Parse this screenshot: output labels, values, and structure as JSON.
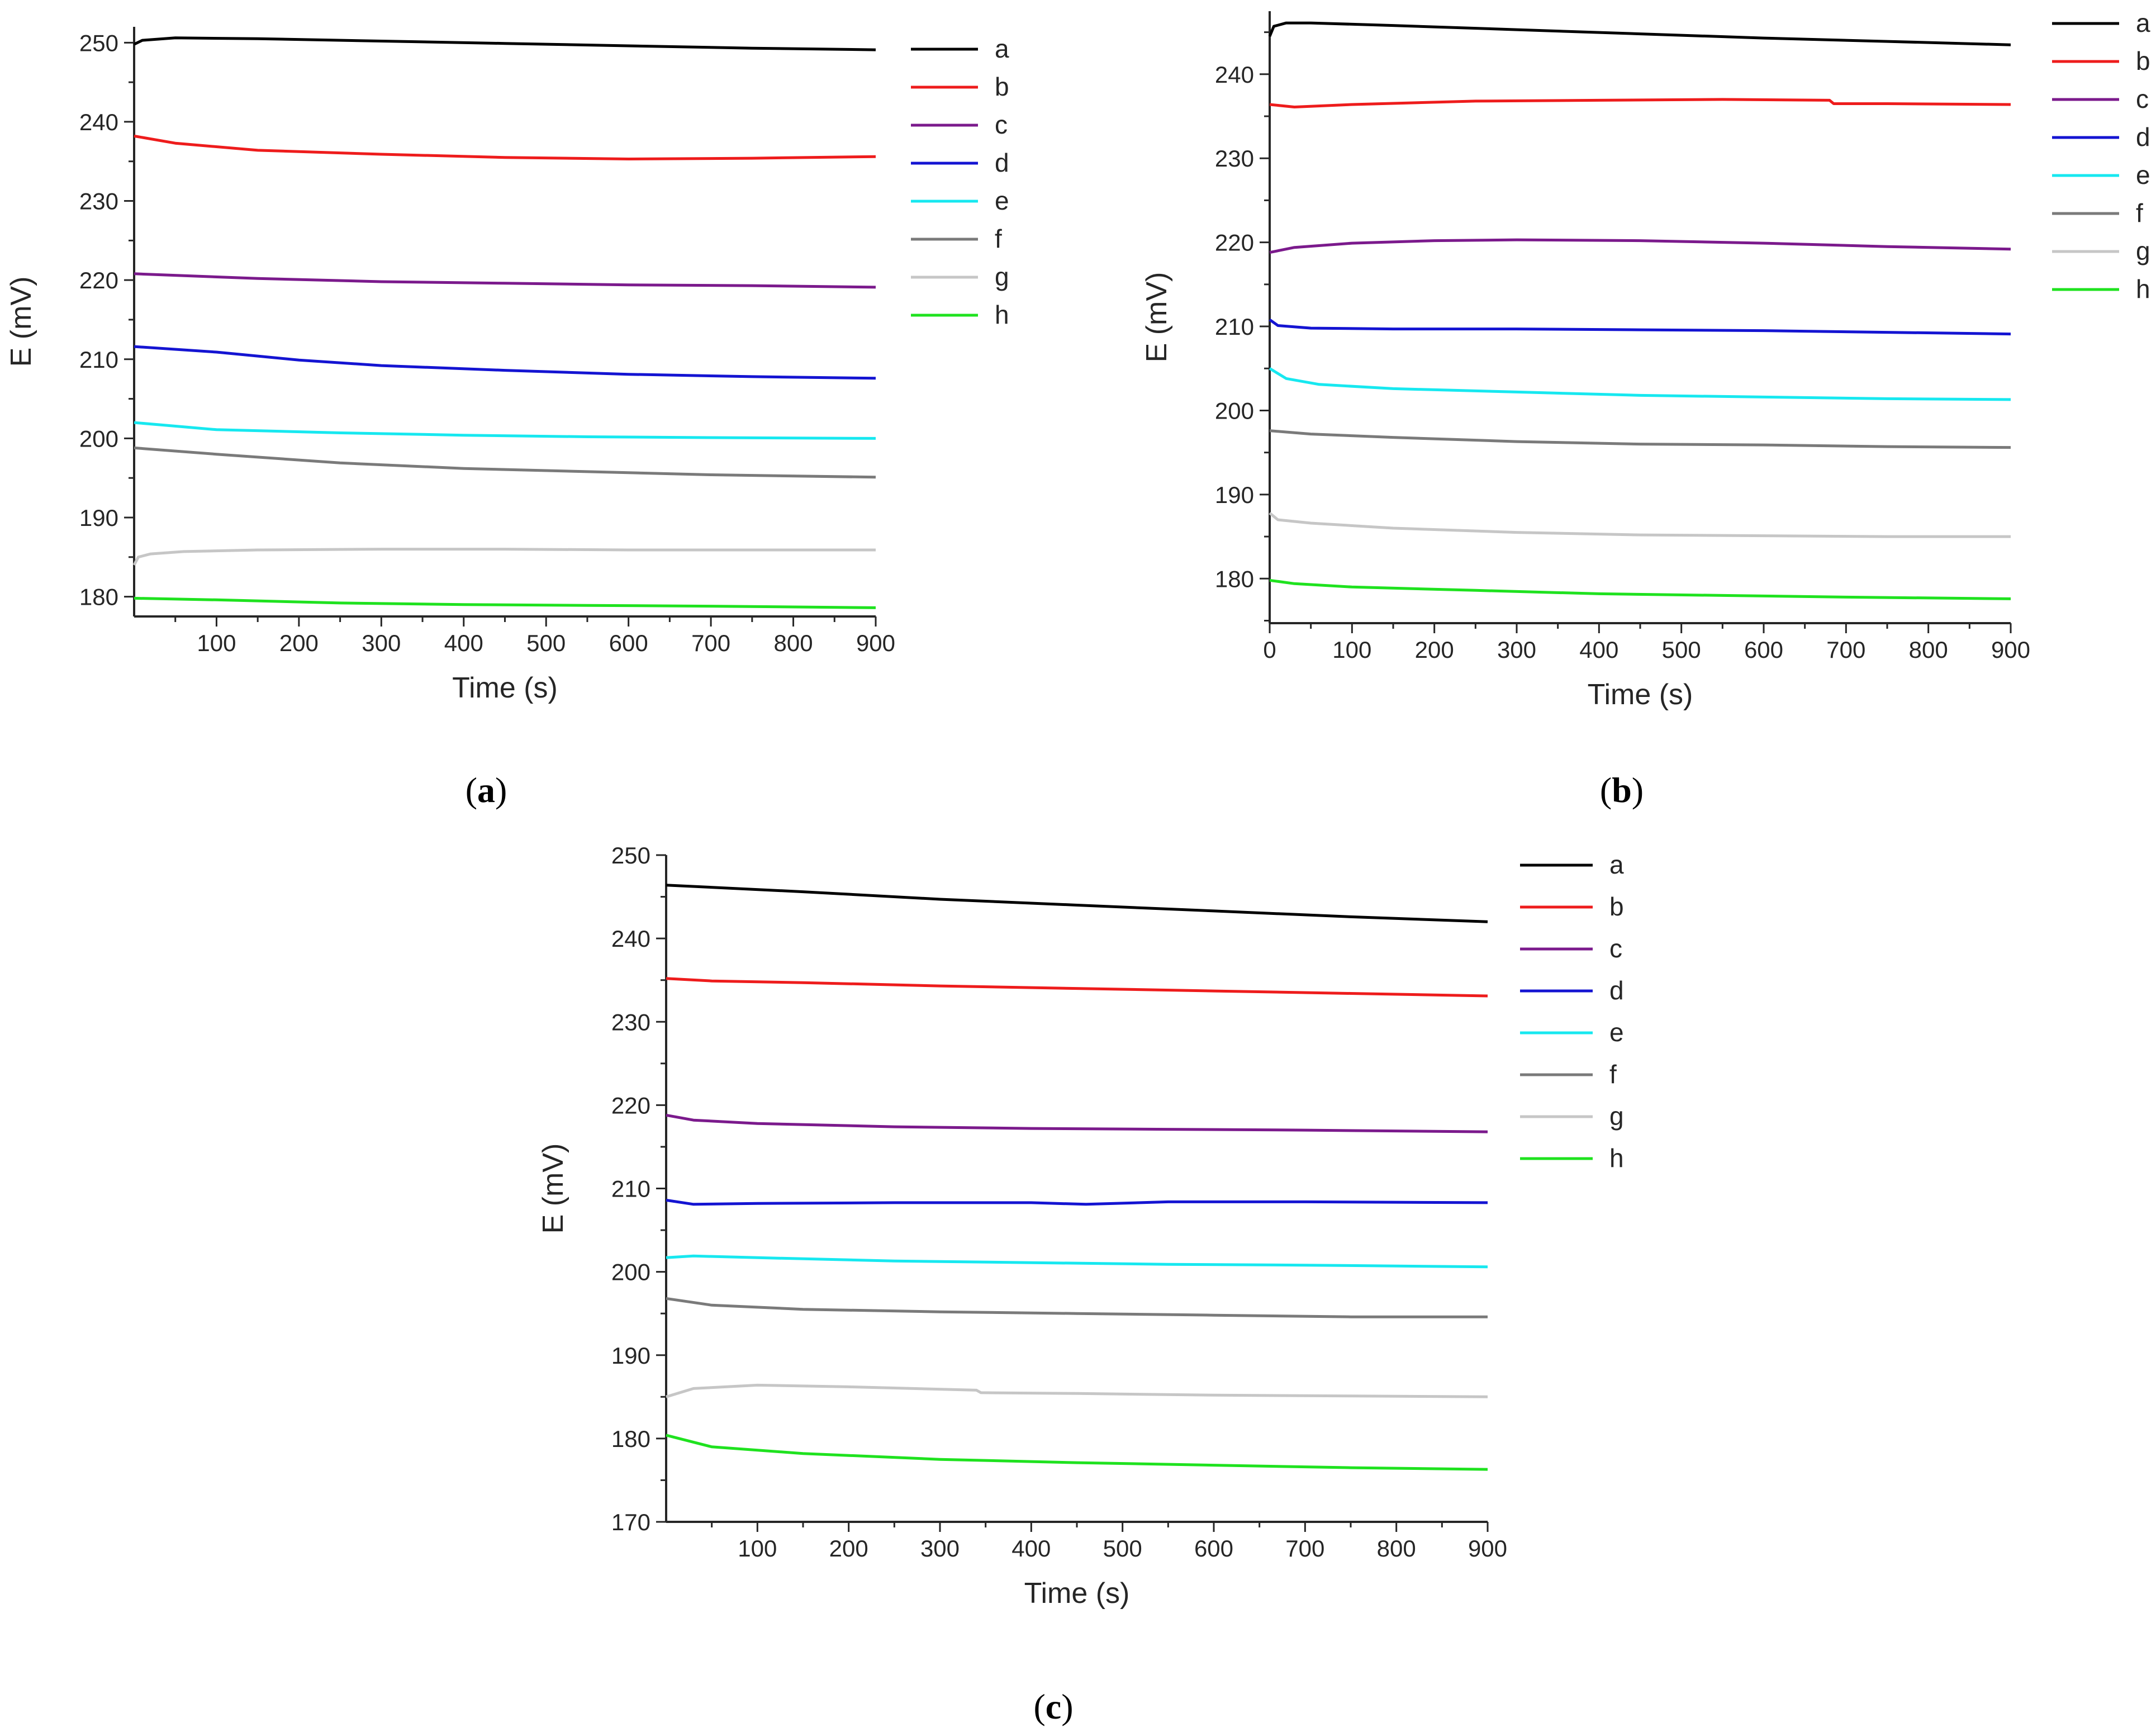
{
  "figure": {
    "series_colors": {
      "a": "#000000",
      "b": "#ee1c1c",
      "c": "#7b1a8c",
      "d": "#1414d2",
      "e": "#17e8f0",
      "f": "#7a7a7a",
      "g": "#c6c6c6",
      "h": "#1fe21f"
    }
  },
  "chart_data": [
    {
      "type": "line",
      "caption_letter": "a",
      "title": "",
      "xlabel": "Time (s)",
      "ylabel": "E (mV)",
      "xlim": [
        0,
        900
      ],
      "ylim": [
        177.5,
        252
      ],
      "xticks": [
        100,
        200,
        300,
        400,
        500,
        600,
        700,
        800,
        900
      ],
      "yticks": [
        180,
        190,
        200,
        210,
        220,
        230,
        240,
        250
      ],
      "legend_position": "right",
      "series": [
        {
          "name": "a",
          "x": [
            0,
            10,
            50,
            150,
            300,
            450,
            600,
            750,
            900
          ],
          "values": [
            249.8,
            250.3,
            250.6,
            250.5,
            250.2,
            249.9,
            249.6,
            249.3,
            249.1
          ]
        },
        {
          "name": "b",
          "x": [
            0,
            50,
            150,
            300,
            450,
            600,
            750,
            900
          ],
          "values": [
            238.2,
            237.3,
            236.4,
            235.9,
            235.5,
            235.3,
            235.4,
            235.6
          ]
        },
        {
          "name": "c",
          "x": [
            0,
            150,
            300,
            450,
            600,
            750,
            900
          ],
          "values": [
            220.8,
            220.2,
            219.8,
            219.6,
            219.4,
            219.3,
            219.1
          ]
        },
        {
          "name": "d",
          "x": [
            0,
            100,
            200,
            300,
            450,
            600,
            750,
            900
          ],
          "values": [
            211.6,
            210.9,
            209.9,
            209.2,
            208.6,
            208.1,
            207.8,
            207.6
          ]
        },
        {
          "name": "e",
          "x": [
            0,
            100,
            250,
            400,
            550,
            700,
            900
          ],
          "values": [
            202.0,
            201.1,
            200.7,
            200.4,
            200.2,
            200.1,
            200.0
          ]
        },
        {
          "name": "f",
          "x": [
            0,
            100,
            250,
            400,
            550,
            700,
            900
          ],
          "values": [
            198.8,
            198.0,
            196.9,
            196.2,
            195.8,
            195.4,
            195.1
          ]
        },
        {
          "name": "g",
          "x": [
            0,
            5,
            20,
            60,
            150,
            300,
            450,
            600,
            750,
            900
          ],
          "values": [
            184.0,
            185.0,
            185.4,
            185.7,
            185.9,
            186.0,
            186.0,
            185.9,
            185.9,
            185.9
          ]
        },
        {
          "name": "h",
          "x": [
            0,
            100,
            250,
            400,
            550,
            700,
            900
          ],
          "values": [
            179.8,
            179.6,
            179.2,
            179.0,
            178.9,
            178.8,
            178.6
          ]
        }
      ]
    },
    {
      "type": "line",
      "caption_letter": "b",
      "title": "",
      "xlabel": "Time (s)",
      "ylabel": "E (mV)",
      "xlim": [
        0,
        900
      ],
      "ylim": [
        174.7,
        247.5
      ],
      "xticks": [
        0,
        100,
        200,
        300,
        400,
        500,
        600,
        700,
        800,
        900
      ],
      "yticks": [
        180,
        190,
        200,
        210,
        220,
        230,
        240
      ],
      "legend_position": "top-right",
      "series": [
        {
          "name": "a",
          "x": [
            0,
            5,
            20,
            50,
            150,
            300,
            450,
            600,
            750,
            900
          ],
          "values": [
            244.5,
            245.7,
            246.1,
            246.1,
            245.8,
            245.3,
            244.8,
            244.3,
            243.9,
            243.5
          ]
        },
        {
          "name": "b",
          "x": [
            0,
            30,
            100,
            250,
            400,
            550,
            680,
            685,
            750,
            900
          ],
          "values": [
            236.4,
            236.1,
            236.4,
            236.8,
            236.9,
            237.0,
            236.9,
            236.5,
            236.5,
            236.4
          ]
        },
        {
          "name": "c",
          "x": [
            0,
            30,
            100,
            200,
            300,
            450,
            600,
            750,
            900
          ],
          "values": [
            218.8,
            219.4,
            219.9,
            220.2,
            220.3,
            220.2,
            219.9,
            219.5,
            219.2
          ]
        },
        {
          "name": "d",
          "x": [
            0,
            10,
            50,
            150,
            300,
            450,
            600,
            750,
            900
          ],
          "values": [
            210.8,
            210.1,
            209.8,
            209.7,
            209.7,
            209.6,
            209.5,
            209.3,
            209.1
          ]
        },
        {
          "name": "e",
          "x": [
            0,
            20,
            60,
            150,
            300,
            450,
            600,
            750,
            900
          ],
          "values": [
            205.0,
            203.8,
            203.1,
            202.6,
            202.2,
            201.8,
            201.6,
            201.4,
            201.3
          ]
        },
        {
          "name": "f",
          "x": [
            0,
            50,
            150,
            300,
            450,
            600,
            750,
            900
          ],
          "values": [
            197.6,
            197.2,
            196.8,
            196.3,
            196.0,
            195.9,
            195.7,
            195.6
          ]
        },
        {
          "name": "g",
          "x": [
            0,
            10,
            50,
            150,
            300,
            450,
            600,
            750,
            900
          ],
          "values": [
            187.8,
            187.0,
            186.6,
            186.0,
            185.5,
            185.2,
            185.1,
            185.0,
            185.0
          ]
        },
        {
          "name": "h",
          "x": [
            0,
            30,
            100,
            250,
            400,
            550,
            700,
            900
          ],
          "values": [
            179.8,
            179.4,
            179.0,
            178.6,
            178.2,
            178.0,
            177.8,
            177.6
          ]
        }
      ]
    },
    {
      "type": "line",
      "caption_letter": "c",
      "title": "",
      "xlabel": "Time (s)",
      "ylabel": "E (mV)",
      "xlim": [
        0,
        900
      ],
      "ylim": [
        170,
        250
      ],
      "xticks": [
        100,
        200,
        300,
        400,
        500,
        600,
        700,
        800,
        900
      ],
      "yticks": [
        170,
        180,
        190,
        200,
        210,
        220,
        230,
        240,
        250
      ],
      "legend_position": "right",
      "series": [
        {
          "name": "a",
          "x": [
            0,
            150,
            300,
            450,
            600,
            750,
            900
          ],
          "values": [
            246.4,
            245.6,
            244.7,
            244.0,
            243.3,
            242.6,
            242.0
          ]
        },
        {
          "name": "b",
          "x": [
            0,
            50,
            150,
            300,
            450,
            600,
            750,
            900
          ],
          "values": [
            235.2,
            234.9,
            234.7,
            234.3,
            234.0,
            233.7,
            233.4,
            233.1
          ]
        },
        {
          "name": "c",
          "x": [
            0,
            30,
            100,
            250,
            400,
            550,
            700,
            900
          ],
          "values": [
            218.8,
            218.2,
            217.8,
            217.4,
            217.2,
            217.1,
            217.0,
            216.8
          ]
        },
        {
          "name": "d",
          "x": [
            0,
            30,
            100,
            250,
            400,
            460,
            550,
            700,
            900
          ],
          "values": [
            208.6,
            208.1,
            208.2,
            208.3,
            208.3,
            208.1,
            208.4,
            208.4,
            208.3
          ]
        },
        {
          "name": "e",
          "x": [
            0,
            30,
            100,
            250,
            400,
            550,
            700,
            900
          ],
          "values": [
            201.7,
            201.9,
            201.7,
            201.3,
            201.1,
            200.9,
            200.8,
            200.6
          ]
        },
        {
          "name": "f",
          "x": [
            0,
            50,
            150,
            300,
            450,
            600,
            750,
            900
          ],
          "values": [
            196.8,
            196.0,
            195.5,
            195.2,
            195.0,
            194.8,
            194.6,
            194.6
          ]
        },
        {
          "name": "g",
          "x": [
            0,
            30,
            100,
            200,
            340,
            345,
            450,
            600,
            750,
            900
          ],
          "values": [
            185.0,
            186.0,
            186.4,
            186.2,
            185.8,
            185.5,
            185.4,
            185.2,
            185.1,
            185.0
          ]
        },
        {
          "name": "h",
          "x": [
            0,
            50,
            150,
            300,
            450,
            600,
            750,
            900
          ],
          "values": [
            180.4,
            179.0,
            178.2,
            177.5,
            177.1,
            176.8,
            176.5,
            176.3
          ]
        }
      ]
    }
  ]
}
